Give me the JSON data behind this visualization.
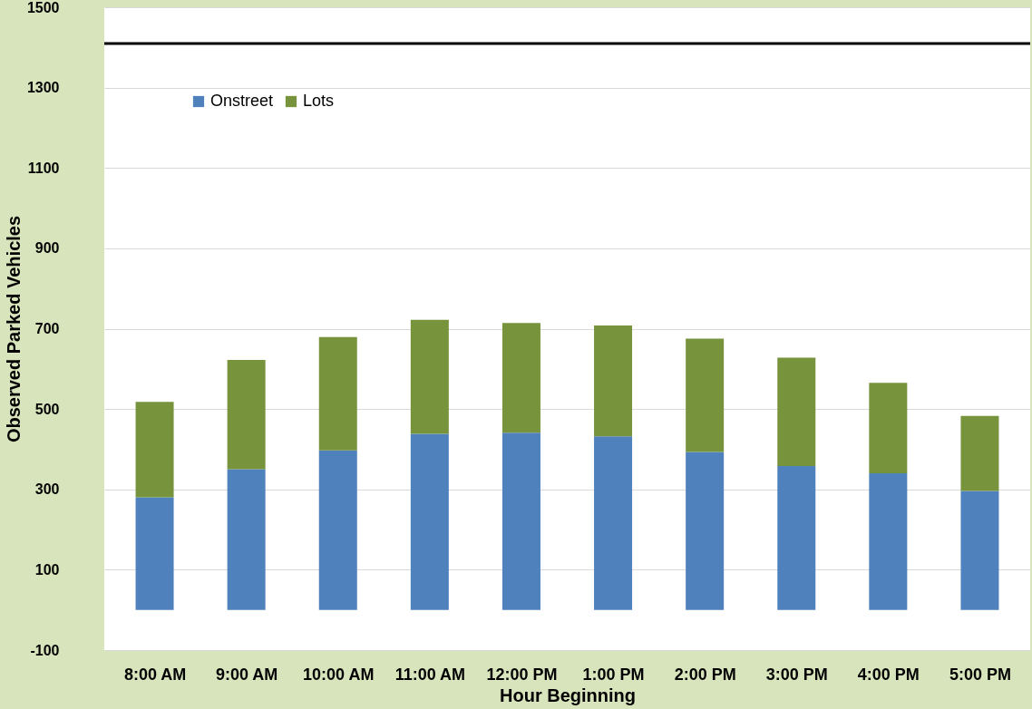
{
  "chart_data": {
    "type": "bar",
    "stacked": true,
    "xlabel": "Hour Beginning",
    "ylabel": "Observed Parked Vehicles",
    "categories": [
      "8:00 AM",
      "9:00 AM",
      "10:00 AM",
      "11:00 AM",
      "12:00 PM",
      "1:00 PM",
      "2:00 PM",
      "3:00 PM",
      "4:00 PM",
      "5:00 PM"
    ],
    "series": [
      {
        "name": "Onstreet",
        "color": "#4f81bd",
        "values": [
          280,
          350,
          397,
          438,
          441,
          432,
          393,
          358,
          340,
          296
        ]
      },
      {
        "name": "Lots",
        "color": "#77933c",
        "values": [
          238,
          272,
          282,
          284,
          273,
          276,
          282,
          270,
          225,
          187
        ]
      }
    ],
    "ylim": [
      -100,
      1500
    ],
    "yticks": [
      -100,
      100,
      300,
      500,
      700,
      900,
      1100,
      1300,
      1500
    ],
    "ref_lines": [
      {
        "axis": "y",
        "value": 1410,
        "color": "#000000"
      }
    ],
    "grid": "y",
    "legend": "top left"
  }
}
